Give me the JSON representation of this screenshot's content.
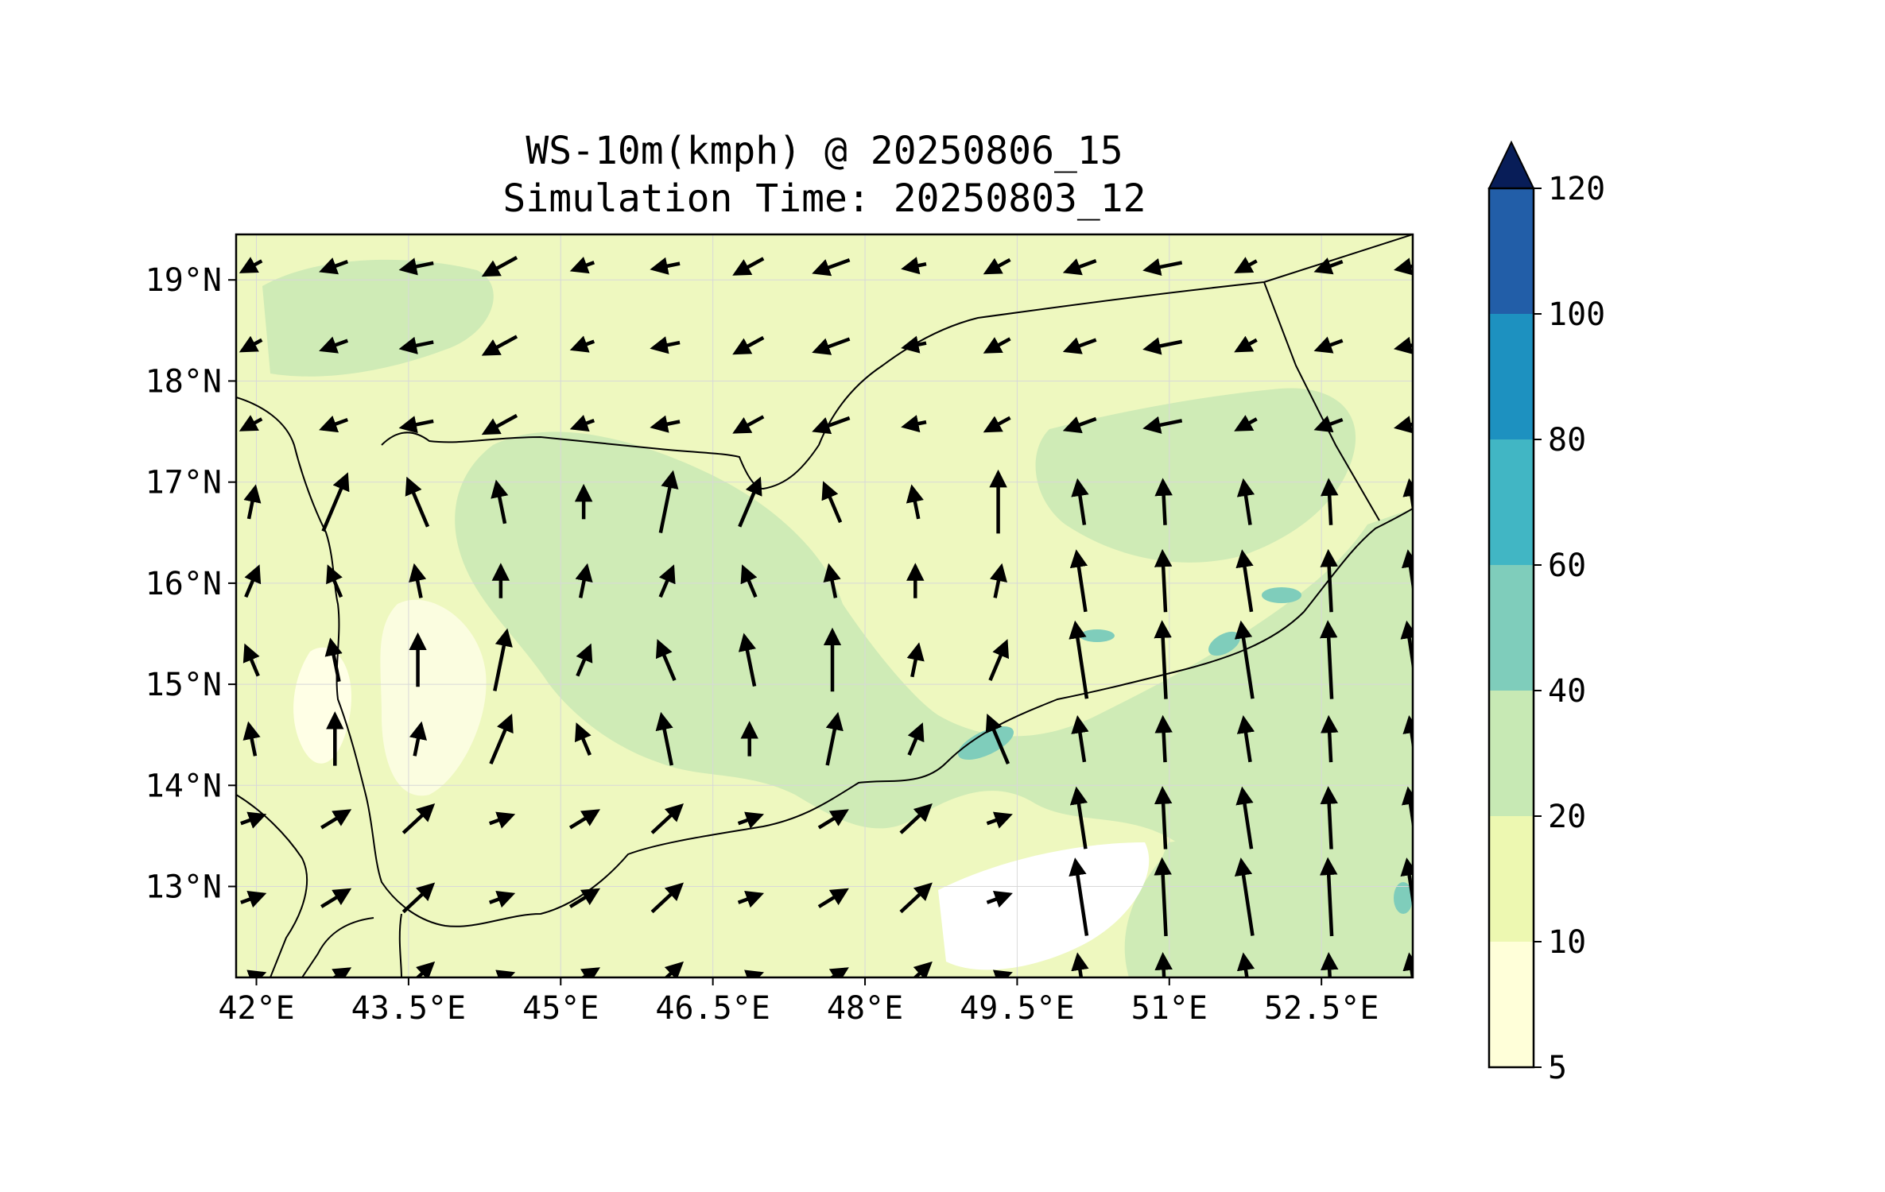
{
  "title": {
    "line1": "WS-10m(kmph) @ 20250806_15",
    "line2": "Simulation Time: 20250803_12"
  },
  "map": {
    "lon_range": [
      41.8,
      53.4
    ],
    "lat_range": [
      12.1,
      19.45
    ],
    "x_ticks": [
      "42°E",
      "43.5°E",
      "45°E",
      "46.5°E",
      "48°E",
      "49.5°E",
      "51°E",
      "52.5°E"
    ],
    "x_tick_values": [
      42,
      43.5,
      45,
      46.5,
      48,
      49.5,
      51,
      52.5
    ],
    "y_ticks": [
      "13°N",
      "14°N",
      "15°N",
      "16°N",
      "17°N",
      "18°N",
      "19°N"
    ],
    "y_tick_values": [
      13,
      14,
      15,
      16,
      17,
      18,
      19
    ],
    "gridlines": true,
    "background_color": "#eef8bf"
  },
  "colorbar": {
    "levels": [
      "5",
      "10",
      "20",
      "40",
      "60",
      "80",
      "100",
      "120"
    ],
    "colors": [
      "#ffffd9",
      "#edf8b1",
      "#c7e9b4",
      "#7fcdbb",
      "#41b6c4",
      "#1d91c0",
      "#225ea8",
      "#253494"
    ],
    "extend_color": "#081d58",
    "extend": "max"
  },
  "wind_field_note": ""
}
